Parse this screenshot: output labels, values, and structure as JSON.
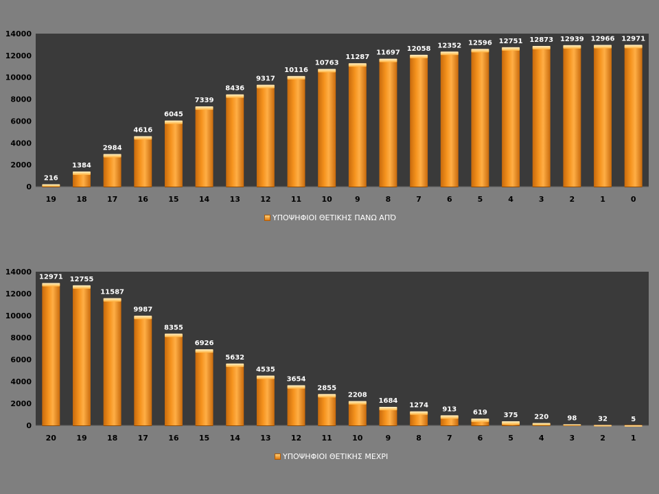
{
  "chart_data": [
    {
      "type": "bar",
      "title": "",
      "categories": [
        "19",
        "18",
        "17",
        "16",
        "15",
        "14",
        "13",
        "12",
        "11",
        "10",
        "9",
        "8",
        "7",
        "6",
        "5",
        "4",
        "3",
        "2",
        "1",
        "0"
      ],
      "series": [
        {
          "name": "ΥΠΟΨΗΦΙΟΙ ΘΕΤΙΚΗΣ ΠΑΝΩ ΑΠΌ",
          "values": [
            216,
            1384,
            2984,
            4616,
            6045,
            7339,
            8436,
            9317,
            10116,
            10763,
            11287,
            11697,
            12058,
            12352,
            12596,
            12751,
            12873,
            12939,
            12966,
            12971
          ]
        }
      ],
      "ylim": [
        0,
        14000
      ],
      "yticks": [
        0,
        2000,
        4000,
        6000,
        8000,
        10000,
        12000,
        14000
      ],
      "xlabel": "",
      "ylabel": "",
      "legend": "bottom-center",
      "bar_color": "#f5931e",
      "plot_bg": "#3a3a3a"
    },
    {
      "type": "bar",
      "title": "",
      "categories": [
        "20",
        "19",
        "18",
        "17",
        "16",
        "15",
        "14",
        "13",
        "12",
        "11",
        "10",
        "9",
        "8",
        "7",
        "6",
        "5",
        "4",
        "3",
        "2",
        "1"
      ],
      "series": [
        {
          "name": "ΥΠΟΨΗΦΙΟΙ ΘΕΤΙΚΗΣ ΜΕΧΡΙ",
          "values": [
            12971,
            12755,
            11587,
            9987,
            8355,
            6926,
            5632,
            4535,
            3654,
            2855,
            2208,
            1684,
            1274,
            913,
            619,
            375,
            220,
            98,
            32,
            5
          ]
        }
      ],
      "ylim": [
        0,
        14000
      ],
      "yticks": [
        0,
        2000,
        4000,
        6000,
        8000,
        10000,
        12000,
        14000
      ],
      "xlabel": "",
      "ylabel": "",
      "legend": "bottom-center",
      "bar_color": "#f5931e",
      "plot_bg": "#3a3a3a"
    }
  ]
}
